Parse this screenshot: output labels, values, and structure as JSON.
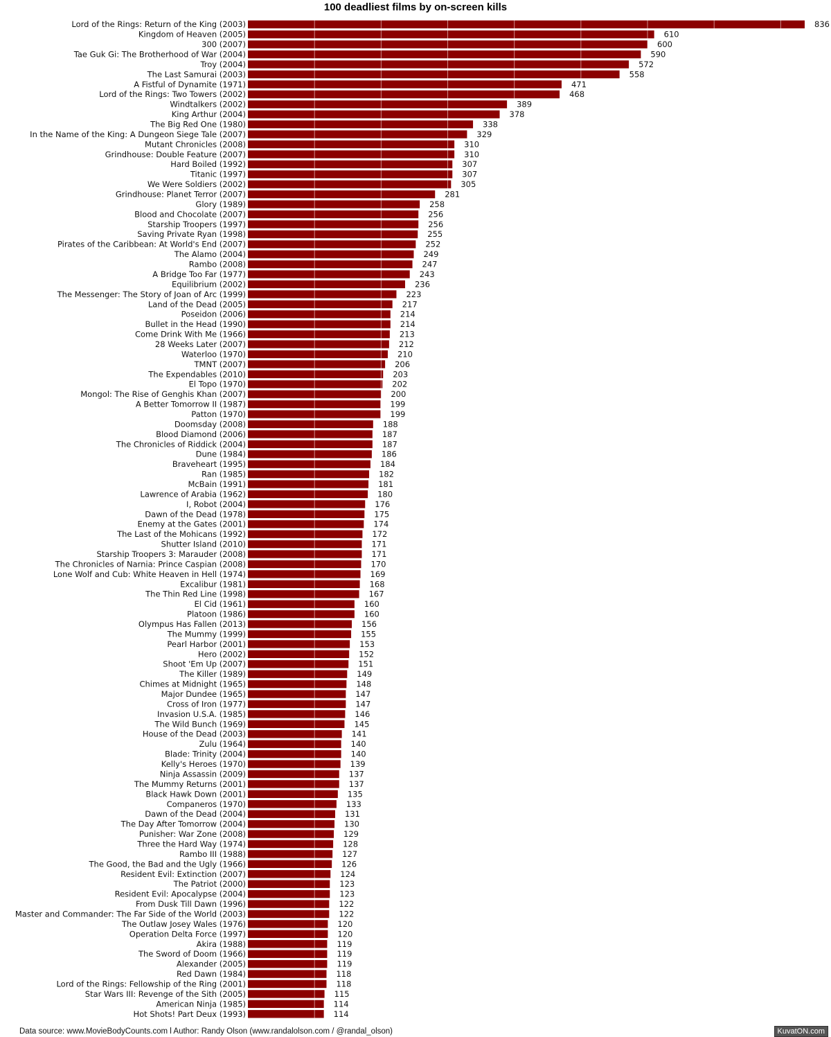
{
  "chart_data": {
    "type": "bar",
    "orientation": "horizontal",
    "title": "100 deadliest films by on-screen kills",
    "xlabel": "",
    "ylabel": "",
    "xlim": [
      0,
      850
    ],
    "grid": true,
    "bar_color": "#8b0000",
    "categories": [
      "Lord of the Rings: Return of the King (2003)",
      "Kingdom of Heaven (2005)",
      "300 (2007)",
      "Tae Guk Gi: The Brotherhood of War (2004)",
      "Troy (2004)",
      "The Last Samurai (2003)",
      "A Fistful of Dynamite (1971)",
      "Lord of the Rings: Two Towers (2002)",
      "Windtalkers (2002)",
      "King Arthur (2004)",
      "The Big Red One (1980)",
      "In the Name of the King: A Dungeon Siege Tale (2007)",
      "Mutant Chronicles (2008)",
      "Grindhouse: Double Feature (2007)",
      "Hard Boiled (1992)",
      "Titanic (1997)",
      "We Were Soldiers (2002)",
      "Grindhouse: Planet Terror (2007)",
      "Glory (1989)",
      "Blood and Chocolate (2007)",
      "Starship Troopers (1997)",
      "Saving Private Ryan (1998)",
      "Pirates of the Caribbean: At World's End (2007)",
      "The Alamo (2004)",
      "Rambo (2008)",
      "A Bridge Too Far (1977)",
      "Equilibrium (2002)",
      "The Messenger: The Story of Joan of Arc (1999)",
      "Land of the Dead (2005)",
      "Poseidon (2006)",
      "Bullet in the Head (1990)",
      "Come Drink With Me (1966)",
      "28 Weeks Later (2007)",
      "Waterloo (1970)",
      "TMNT (2007)",
      "The Expendables (2010)",
      "El Topo (1970)",
      "Mongol: The Rise of Genghis Khan (2007)",
      "A Better Tomorrow II (1987)",
      "Patton (1970)",
      "Doomsday (2008)",
      "Blood Diamond (2006)",
      "The Chronicles of Riddick (2004)",
      "Dune (1984)",
      "Braveheart (1995)",
      "Ran (1985)",
      "McBain (1991)",
      "Lawrence of Arabia (1962)",
      "I, Robot (2004)",
      "Dawn of the Dead (1978)",
      "Enemy at the Gates (2001)",
      "The Last of the Mohicans (1992)",
      "Shutter Island (2010)",
      "Starship Troopers 3: Marauder (2008)",
      "The Chronicles of Narnia: Prince Caspian (2008)",
      "Lone Wolf and Cub: White Heaven in Hell (1974)",
      "Excalibur (1981)",
      "The Thin Red Line (1998)",
      "El Cid (1961)",
      "Platoon (1986)",
      "Olympus Has Fallen (2013)",
      "The Mummy (1999)",
      "Pearl Harbor (2001)",
      "Hero (2002)",
      "Shoot 'Em Up (2007)",
      "The Killer (1989)",
      "Chimes at Midnight (1965)",
      "Major Dundee (1965)",
      "Cross of Iron (1977)",
      "Invasion U.S.A. (1985)",
      "The Wild Bunch (1969)",
      "House of the Dead (2003)",
      "Zulu (1964)",
      "Blade: Trinity (2004)",
      "Kelly's Heroes (1970)",
      "Ninja Assassin (2009)",
      "The Mummy Returns (2001)",
      "Black Hawk Down (2001)",
      "Companeros (1970)",
      "Dawn of the Dead (2004)",
      "The Day After Tomorrow (2004)",
      "Punisher: War Zone (2008)",
      "Three the Hard Way (1974)",
      "Rambo III (1988)",
      "The Good, the Bad and the Ugly (1966)",
      "Resident Evil: Extinction (2007)",
      "The Patriot (2000)",
      "Resident Evil: Apocalypse (2004)",
      "From Dusk Till Dawn (1996)",
      "Master and Commander: The Far Side of the World (2003)",
      "The Outlaw Josey Wales (1976)",
      "Operation Delta Force (1997)",
      "Akira (1988)",
      "The Sword of Doom (1966)",
      "Alexander (2005)",
      "Red Dawn (1984)",
      "Lord of the Rings: Fellowship of the Ring (2001)",
      "Star Wars III: Revenge of the Sith (2005)",
      "American Ninja (1985)",
      "Hot Shots! Part Deux (1993)"
    ],
    "values": [
      836,
      610,
      600,
      590,
      572,
      558,
      471,
      468,
      389,
      378,
      338,
      329,
      310,
      310,
      307,
      307,
      305,
      281,
      258,
      256,
      256,
      255,
      252,
      249,
      247,
      243,
      236,
      223,
      217,
      214,
      214,
      213,
      212,
      210,
      206,
      203,
      202,
      200,
      199,
      199,
      188,
      187,
      187,
      186,
      184,
      182,
      181,
      180,
      176,
      175,
      174,
      172,
      171,
      171,
      170,
      169,
      168,
      167,
      160,
      160,
      156,
      155,
      153,
      152,
      151,
      149,
      148,
      147,
      147,
      146,
      145,
      141,
      140,
      140,
      139,
      137,
      137,
      135,
      133,
      131,
      130,
      129,
      128,
      127,
      126,
      124,
      123,
      123,
      122,
      122,
      120,
      120,
      119,
      119,
      119,
      118,
      118,
      115,
      114,
      114
    ]
  },
  "footer": {
    "source": "Data source: www.MovieBodyCounts.com l Author: Randy Olson (www.randalolson.com / @randal_olson)",
    "watermark": "KuvatON.com"
  }
}
